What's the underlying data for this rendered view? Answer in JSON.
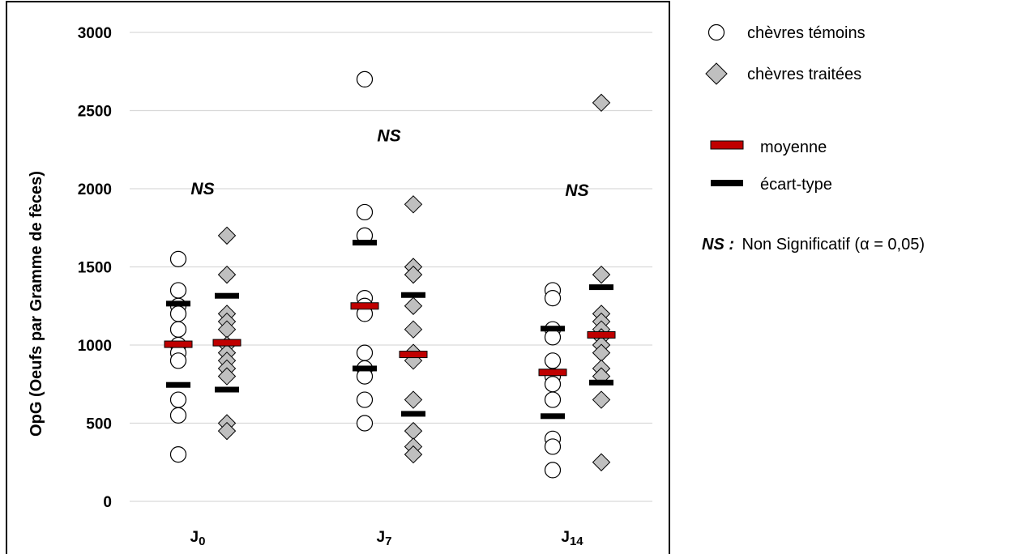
{
  "chart_data": {
    "type": "scatter",
    "ylabel": "OpG (Oeufs par Gramme de fèces)",
    "ylim": [
      0,
      3000
    ],
    "yticks": [
      "0",
      "500",
      "1000",
      "1500",
      "2000",
      "2500",
      "3000"
    ],
    "grid": true,
    "legend_position": "right",
    "groups": [
      {
        "label": "J0",
        "label_main": "J",
        "label_sub": "0",
        "annotation": "NS",
        "annotation_y": 2000,
        "temoins": {
          "values": [
            1550,
            1350,
            1250,
            1200,
            1100,
            1000,
            950,
            900,
            650,
            550,
            300
          ],
          "mean": 1005,
          "sd_upper": 1265,
          "sd_lower": 745
        },
        "traitees": {
          "values": [
            1700,
            1450,
            1200,
            1150,
            1100,
            1000,
            950,
            900,
            850,
            800,
            500,
            450
          ],
          "mean": 1015,
          "sd_upper": 1315,
          "sd_lower": 715
        }
      },
      {
        "label": "J7",
        "label_main": "J",
        "label_sub": "7",
        "annotation": "NS",
        "annotation_y": 2340,
        "temoins": {
          "values": [
            2700,
            1850,
            1700,
            1300,
            1250,
            1200,
            950,
            850,
            800,
            650,
            500
          ],
          "mean": 1250,
          "sd_upper": 1655,
          "sd_lower": 850
        },
        "traitees": {
          "values": [
            1900,
            1500,
            1450,
            1250,
            1100,
            950,
            900,
            650,
            450,
            350,
            300
          ],
          "mean": 940,
          "sd_upper": 1320,
          "sd_lower": 560
        }
      },
      {
        "label": "J14",
        "label_main": "J",
        "label_sub": "14",
        "annotation": "NS",
        "annotation_y": 1990,
        "temoins": {
          "values": [
            1350,
            1300,
            1100,
            1050,
            900,
            800,
            750,
            650,
            400,
            350,
            200
          ],
          "mean": 825,
          "sd_upper": 1105,
          "sd_lower": 545
        },
        "traitees": {
          "values": [
            2550,
            1450,
            1200,
            1150,
            1100,
            1050,
            1000,
            950,
            850,
            800,
            650,
            250
          ],
          "mean": 1065,
          "sd_upper": 1370,
          "sd_lower": 760
        }
      }
    ],
    "legend": {
      "temoins": "chèvres témoins",
      "traitees": "chèvres traitées",
      "mean": "moyenne",
      "sd": "écart-type",
      "ns_key": "NS :",
      "ns_text": "Non Significatif (α = 0,05)"
    },
    "colors": {
      "temoins_fill": "#ffffff",
      "traitees_fill": "#bfbfbf",
      "marker_stroke": "#000000",
      "mean": "#c00000",
      "sd": "#000000",
      "grid": "#d9d9d9"
    }
  }
}
